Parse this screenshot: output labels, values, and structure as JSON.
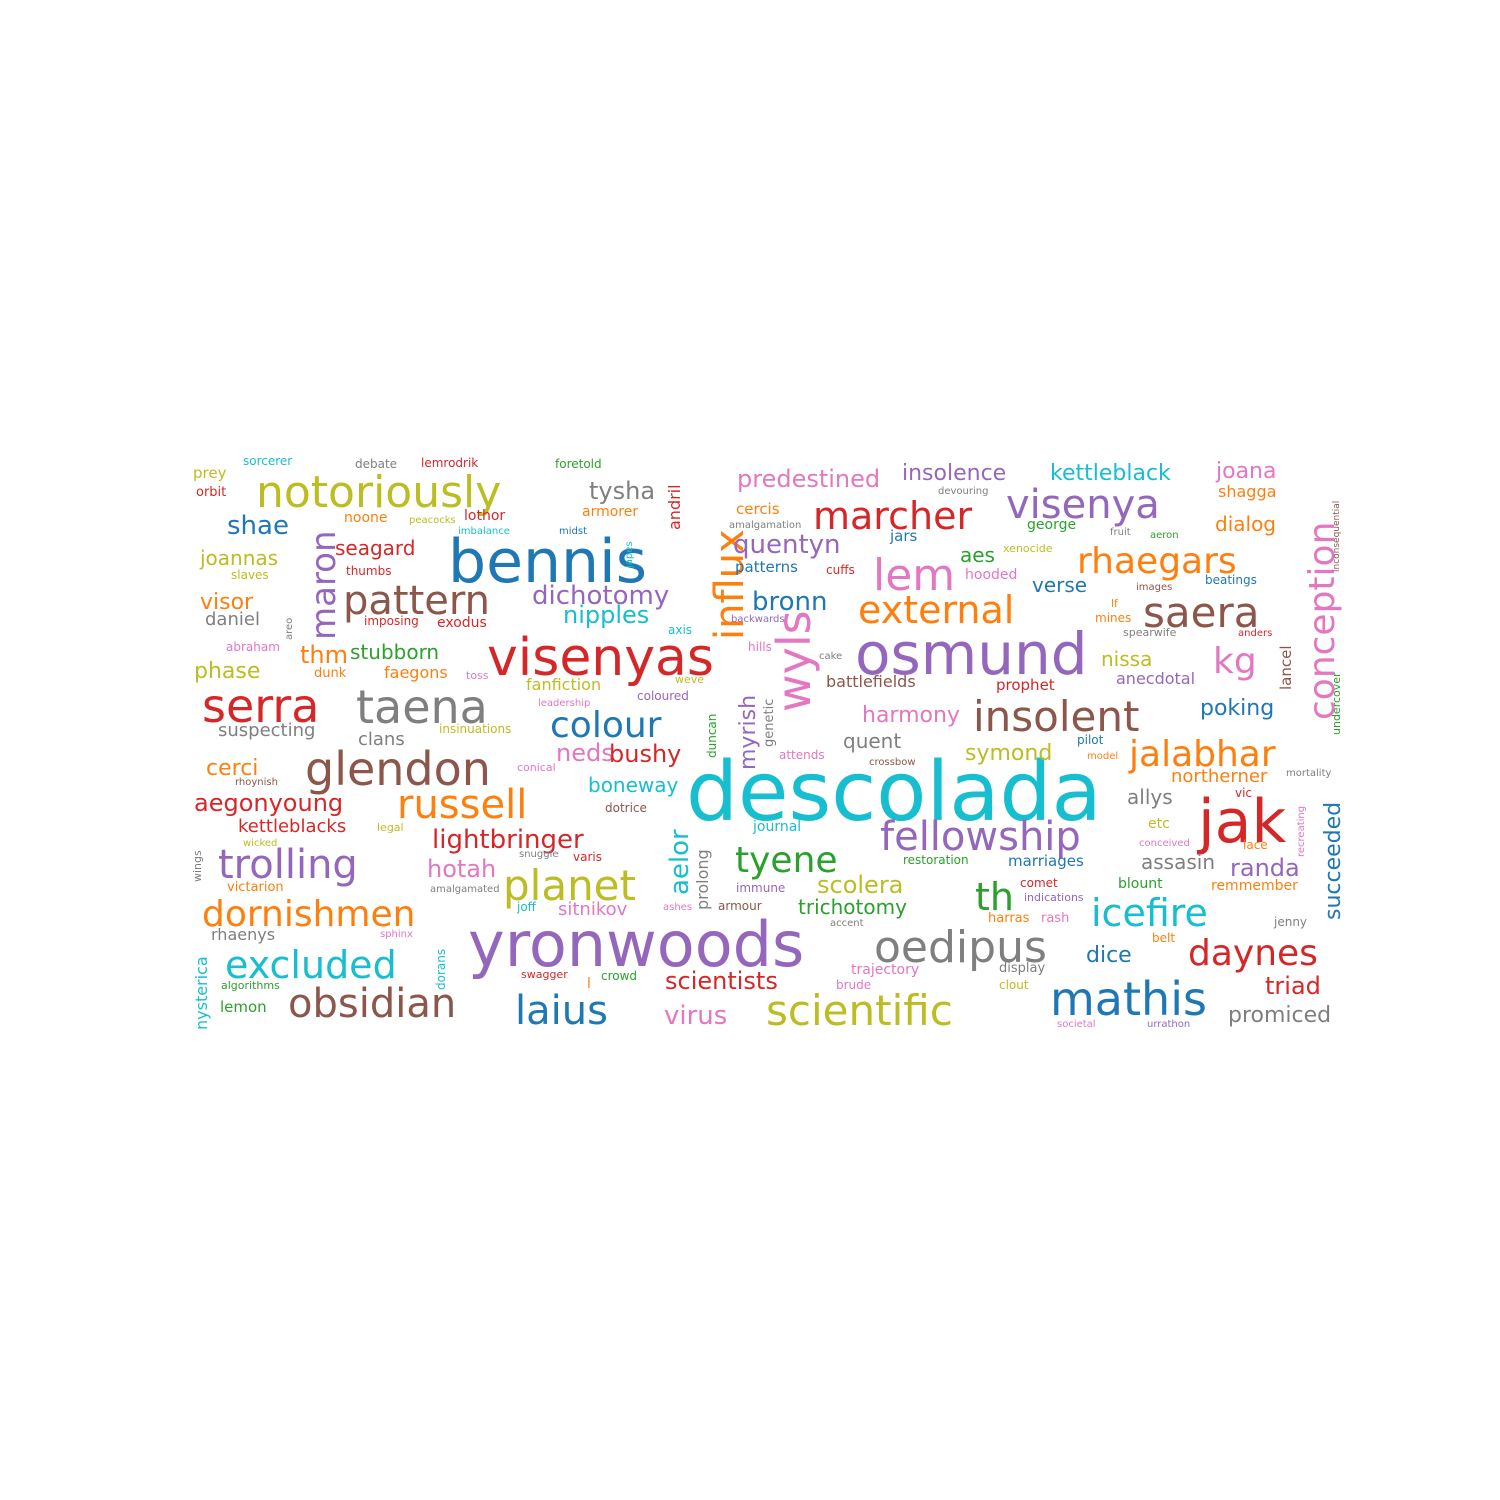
{
  "palette": {
    "blue": "#1f77b4",
    "orange": "#ff7f0e",
    "green": "#2ca02c",
    "red": "#d62728",
    "purple": "#9467bd",
    "brown": "#8c564b",
    "pink": "#e377c2",
    "gray": "#7f7f7f",
    "olive": "#bcbd22",
    "cyan": "#17becf"
  },
  "words": [
    {
      "text": "descolada",
      "weight": 100,
      "color": "cyan"
    },
    {
      "text": "yronwoods",
      "weight": 80,
      "color": "purple"
    },
    {
      "text": "bennis",
      "weight": 78,
      "color": "blue"
    },
    {
      "text": "osmund",
      "weight": 77,
      "color": "purple"
    },
    {
      "text": "visenyas",
      "weight": 73,
      "color": "red"
    },
    {
      "text": "jak",
      "weight": 70,
      "color": "red"
    },
    {
      "text": "notoriously",
      "weight": 60,
      "color": "olive"
    },
    {
      "text": "taena",
      "weight": 59,
      "color": "gray"
    },
    {
      "text": "glendon",
      "weight": 58,
      "color": "brown"
    },
    {
      "text": "serra",
      "weight": 58,
      "color": "red"
    },
    {
      "text": "wyls",
      "weight": 57,
      "color": "pink"
    },
    {
      "text": "oedipus",
      "weight": 56,
      "color": "gray"
    },
    {
      "text": "lem",
      "weight": 55,
      "color": "pink"
    },
    {
      "text": "mathis",
      "weight": 55,
      "color": "blue"
    },
    {
      "text": "fellowship",
      "weight": 54,
      "color": "purple"
    },
    {
      "text": "insolent",
      "weight": 53,
      "color": "brown"
    },
    {
      "text": "planet",
      "weight": 53,
      "color": "olive"
    },
    {
      "text": "saera",
      "weight": 53,
      "color": "brown"
    },
    {
      "text": "scientific",
      "weight": 52,
      "color": "olive"
    },
    {
      "text": "obsidian",
      "weight": 52,
      "color": "brown"
    },
    {
      "text": "visenya",
      "weight": 51,
      "color": "purple"
    },
    {
      "text": "influx",
      "weight": 51,
      "color": "orange"
    },
    {
      "text": "trolling",
      "weight": 51,
      "color": "purple"
    },
    {
      "text": "russell",
      "weight": 50,
      "color": "orange"
    },
    {
      "text": "pattern",
      "weight": 50,
      "color": "brown"
    },
    {
      "text": "external",
      "weight": 50,
      "color": "orange"
    },
    {
      "text": "icefire",
      "weight": 49,
      "color": "cyan"
    },
    {
      "text": "conception",
      "weight": 49,
      "color": "pink"
    },
    {
      "text": "excluded",
      "weight": 49,
      "color": "cyan"
    },
    {
      "text": "marcher",
      "weight": 49,
      "color": "red"
    },
    {
      "text": "laius",
      "weight": 48,
      "color": "blue"
    },
    {
      "text": "rhaegars",
      "weight": 48,
      "color": "orange"
    },
    {
      "text": "dornishmen",
      "weight": 48,
      "color": "orange"
    },
    {
      "text": "colour",
      "weight": 47,
      "color": "blue"
    },
    {
      "text": "daynes",
      "weight": 46,
      "color": "red"
    },
    {
      "text": "jalabhar",
      "weight": 46,
      "color": "orange"
    },
    {
      "text": "maron",
      "weight": 45,
      "color": "purple"
    },
    {
      "text": "kg",
      "weight": 44,
      "color": "pink"
    },
    {
      "text": "th",
      "weight": 44,
      "color": "green"
    },
    {
      "text": "tyene",
      "weight": 44,
      "color": "green"
    },
    {
      "text": "aelor",
      "weight": 38,
      "color": "cyan"
    },
    {
      "text": "lightbringer",
      "weight": 36,
      "color": "red"
    },
    {
      "text": "dichotomy",
      "weight": 36,
      "color": "purple"
    },
    {
      "text": "scolera",
      "weight": 35,
      "color": "olive"
    },
    {
      "text": "shae",
      "weight": 34,
      "color": "blue"
    },
    {
      "text": "quentyn",
      "weight": 34,
      "color": "purple"
    },
    {
      "text": "predestined",
      "weight": 34,
      "color": "pink"
    },
    {
      "text": "scientists",
      "weight": 33,
      "color": "red"
    },
    {
      "text": "virus",
      "weight": 33,
      "color": "pink"
    },
    {
      "text": "bronn",
      "weight": 33,
      "color": "blue"
    },
    {
      "text": "aegonyoung",
      "weight": 33,
      "color": "red"
    },
    {
      "text": "succeeded",
      "weight": 33,
      "color": "blue"
    },
    {
      "text": "myrish",
      "weight": 32,
      "color": "purple"
    },
    {
      "text": "tysha",
      "weight": 32,
      "color": "gray"
    },
    {
      "text": "nipples",
      "weight": 32,
      "color": "cyan"
    },
    {
      "text": "hotah",
      "weight": 32,
      "color": "pink"
    },
    {
      "text": "neds",
      "weight": 32,
      "color": "pink"
    },
    {
      "text": "bushy",
      "weight": 32,
      "color": "red"
    },
    {
      "text": "randa",
      "weight": 32,
      "color": "purple"
    },
    {
      "text": "triad",
      "weight": 32,
      "color": "red"
    },
    {
      "text": "promiced",
      "weight": 32,
      "color": "gray"
    },
    {
      "text": "joana",
      "weight": 31,
      "color": "pink"
    },
    {
      "text": "dice",
      "weight": 31,
      "color": "blue"
    },
    {
      "text": "visor",
      "weight": 31,
      "color": "orange"
    },
    {
      "text": "cerci",
      "weight": 31,
      "color": "orange"
    },
    {
      "text": "kettleblack",
      "weight": 31,
      "color": "cyan"
    },
    {
      "text": "insolence",
      "weight": 31,
      "color": "purple"
    },
    {
      "text": "seagard",
      "weight": 30,
      "color": "red"
    },
    {
      "text": "joannas",
      "weight": 30,
      "color": "olive"
    },
    {
      "text": "stubborn",
      "weight": 30,
      "color": "green"
    },
    {
      "text": "thm",
      "weight": 30,
      "color": "orange"
    },
    {
      "text": "phase",
      "weight": 30,
      "color": "olive"
    },
    {
      "text": "harmony",
      "weight": 30,
      "color": "pink"
    },
    {
      "text": "nissa",
      "weight": 30,
      "color": "olive"
    },
    {
      "text": "poking",
      "weight": 30,
      "color": "blue"
    },
    {
      "text": "symond",
      "weight": 30,
      "color": "olive"
    },
    {
      "text": "quent",
      "weight": 30,
      "color": "gray"
    },
    {
      "text": "trichotomy",
      "weight": 30,
      "color": "green"
    },
    {
      "text": "allys",
      "weight": 30,
      "color": "gray"
    },
    {
      "text": "aes",
      "weight": 30,
      "color": "green"
    },
    {
      "text": "verse",
      "weight": 30,
      "color": "blue"
    },
    {
      "text": "assasin",
      "weight": 29,
      "color": "gray"
    },
    {
      "text": "dialog",
      "weight": 29,
      "color": "orange"
    },
    {
      "text": "boneway",
      "weight": 29,
      "color": "cyan"
    },
    {
      "text": "sitnikov",
      "weight": 28,
      "color": "pink"
    },
    {
      "text": "daniel",
      "weight": 28,
      "color": "gray"
    },
    {
      "text": "suspecting",
      "weight": 28,
      "color": "gray"
    },
    {
      "text": "clans",
      "weight": 28,
      "color": "gray"
    },
    {
      "text": "northerner",
      "weight": 28,
      "color": "orange"
    },
    {
      "text": "rhaenys",
      "weight": 27,
      "color": "gray"
    },
    {
      "text": "prolong",
      "weight": 27,
      "color": "gray"
    },
    {
      "text": "andril",
      "weight": 26,
      "color": "red"
    },
    {
      "text": "kettleblacks",
      "weight": 26,
      "color": "red"
    },
    {
      "text": "fanfiction",
      "weight": 26,
      "color": "olive"
    },
    {
      "text": "battlefields",
      "weight": 26,
      "color": "brown"
    },
    {
      "text": "nysterica",
      "weight": 26,
      "color": "cyan"
    },
    {
      "text": "anecdotal",
      "weight": 26,
      "color": "purple"
    },
    {
      "text": "faegons",
      "weight": 26,
      "color": "orange"
    },
    {
      "text": "shagga",
      "weight": 26,
      "color": "orange"
    },
    {
      "text": "patterns",
      "weight": 25,
      "color": "blue"
    },
    {
      "text": "cercis",
      "weight": 25,
      "color": "orange"
    },
    {
      "text": "lancel",
      "weight": 25,
      "color": "brown"
    },
    {
      "text": "jars",
      "weight": 25,
      "color": "blue"
    },
    {
      "text": "marriages",
      "weight": 25,
      "color": "blue"
    },
    {
      "text": "prophet",
      "weight": 25,
      "color": "red"
    },
    {
      "text": "blount",
      "weight": 25,
      "color": "green"
    },
    {
      "text": "george",
      "weight": 25,
      "color": "green"
    },
    {
      "text": "armorer",
      "weight": 25,
      "color": "orange"
    },
    {
      "text": "hooded",
      "weight": 25,
      "color": "pink"
    },
    {
      "text": "exodus",
      "weight": 25,
      "color": "red"
    },
    {
      "text": "trajectory",
      "weight": 25,
      "color": "pink"
    },
    {
      "text": "lothor",
      "weight": 25,
      "color": "red"
    },
    {
      "text": "noone",
      "weight": 25,
      "color": "orange"
    },
    {
      "text": "prey",
      "weight": 25,
      "color": "olive"
    },
    {
      "text": "etc",
      "weight": 24,
      "color": "olive"
    },
    {
      "text": "genetic",
      "weight": 24,
      "color": "gray"
    },
    {
      "text": "duncan",
      "weight": 24,
      "color": "green"
    },
    {
      "text": "remmember",
      "weight": 24,
      "color": "orange"
    },
    {
      "text": "beatings",
      "weight": 24,
      "color": "blue"
    },
    {
      "text": "undercover",
      "weight": 23,
      "color": "green"
    },
    {
      "text": "journal",
      "weight": 23,
      "color": "cyan"
    },
    {
      "text": "crowd",
      "weight": 23,
      "color": "green"
    },
    {
      "text": "lemon",
      "weight": 23,
      "color": "green"
    },
    {
      "text": "restoration",
      "weight": 23,
      "color": "green"
    },
    {
      "text": "display",
      "weight": 23,
      "color": "gray"
    },
    {
      "text": "pilot",
      "weight": 23,
      "color": "blue"
    },
    {
      "text": "orbit",
      "weight": 23,
      "color": "red"
    },
    {
      "text": "sorcerer",
      "weight": 22,
      "color": "cyan"
    },
    {
      "text": "debate",
      "weight": 22,
      "color": "gray"
    },
    {
      "text": "lemrodrik",
      "weight": 22,
      "color": "red"
    },
    {
      "text": "foretold",
      "weight": 22,
      "color": "green"
    },
    {
      "text": "vic",
      "weight": 22,
      "color": "red"
    },
    {
      "text": "lace",
      "weight": 22,
      "color": "orange"
    },
    {
      "text": "harras",
      "weight": 22,
      "color": "orange"
    },
    {
      "text": "rash",
      "weight": 22,
      "color": "pink"
    },
    {
      "text": "comet",
      "weight": 22,
      "color": "red"
    },
    {
      "text": "cuffs",
      "weight": 22,
      "color": "red"
    },
    {
      "text": "dorans",
      "weight": 22,
      "color": "cyan"
    },
    {
      "text": "mines",
      "weight": 22,
      "color": "orange"
    },
    {
      "text": "varis",
      "weight": 22,
      "color": "red"
    },
    {
      "text": "victarion",
      "weight": 22,
      "color": "orange"
    },
    {
      "text": "swagger",
      "weight": 21,
      "color": "red"
    },
    {
      "text": "thumbs",
      "weight": 21,
      "color": "red"
    },
    {
      "text": "axis",
      "weight": 21,
      "color": "cyan"
    },
    {
      "text": "hills",
      "weight": 21,
      "color": "pink"
    },
    {
      "text": "armour",
      "weight": 21,
      "color": "brown"
    },
    {
      "text": "dotrice",
      "weight": 21,
      "color": "brown"
    },
    {
      "text": "immune",
      "weight": 21,
      "color": "purple"
    },
    {
      "text": "belt",
      "weight": 21,
      "color": "orange"
    },
    {
      "text": "jenny",
      "weight": 21,
      "color": "gray"
    },
    {
      "text": "brude",
      "weight": 21,
      "color": "pink"
    },
    {
      "text": "toss",
      "weight": 20,
      "color": "pink"
    },
    {
      "text": "dunk",
      "weight": 20,
      "color": "orange"
    },
    {
      "text": "wings",
      "weight": 20,
      "color": "gray"
    },
    {
      "text": "weve",
      "weight": 20,
      "color": "olive"
    },
    {
      "text": "slaves",
      "weight": 20,
      "color": "olive"
    },
    {
      "text": "imposing",
      "weight": 20,
      "color": "red"
    },
    {
      "text": "abraham",
      "weight": 20,
      "color": "pink"
    },
    {
      "text": "attends",
      "weight": 20,
      "color": "pink"
    },
    {
      "text": "joff",
      "weight": 20,
      "color": "cyan"
    },
    {
      "text": "insinuations",
      "weight": 20,
      "color": "olive"
    },
    {
      "text": "coloured",
      "weight": 20,
      "color": "purple"
    },
    {
      "text": "clout",
      "weight": 20,
      "color": "olive"
    },
    {
      "text": "algorithms",
      "weight": 20,
      "color": "green"
    },
    {
      "text": "areo",
      "weight": 19,
      "color": "gray"
    },
    {
      "text": "legal",
      "weight": 19,
      "color": "olive"
    },
    {
      "text": "conical",
      "weight": 19,
      "color": "pink"
    },
    {
      "text": "leadership",
      "weight": 19,
      "color": "pink"
    },
    {
      "text": "xenocide",
      "weight": 19,
      "color": "olive"
    },
    {
      "text": "lf",
      "weight": 19,
      "color": "orange"
    },
    {
      "text": "anders",
      "weight": 19,
      "color": "red"
    },
    {
      "text": "backwards",
      "weight": 19,
      "color": "purple"
    },
    {
      "text": "midst",
      "weight": 19,
      "color": "blue"
    },
    {
      "text": "imbalance",
      "weight": 19,
      "color": "cyan"
    },
    {
      "text": "peacocks",
      "weight": 19,
      "color": "olive"
    },
    {
      "text": "japes",
      "weight": 19,
      "color": "cyan"
    },
    {
      "text": "model",
      "weight": 19,
      "color": "orange"
    },
    {
      "text": "spearwife",
      "weight": 19,
      "color": "gray"
    },
    {
      "text": "indications",
      "weight": 19,
      "color": "purple"
    },
    {
      "text": "sphinx",
      "weight": 19,
      "color": "pink"
    },
    {
      "text": "societal",
      "weight": 19,
      "color": "pink"
    },
    {
      "text": "urrathon",
      "weight": 19,
      "color": "purple"
    },
    {
      "text": "devouring",
      "weight": 18,
      "color": "gray"
    },
    {
      "text": "amalgamation",
      "weight": 18,
      "color": "gray"
    },
    {
      "text": "inconsequential",
      "weight": 18,
      "color": "brown"
    },
    {
      "text": "fruit",
      "weight": 18,
      "color": "gray"
    },
    {
      "text": "aeron",
      "weight": 18,
      "color": "green"
    },
    {
      "text": "images",
      "weight": 18,
      "color": "brown"
    },
    {
      "text": "cake",
      "weight": 18,
      "color": "gray"
    },
    {
      "text": "rhoynish",
      "weight": 18,
      "color": "brown"
    },
    {
      "text": "mortality",
      "weight": 18,
      "color": "gray"
    },
    {
      "text": "recreating",
      "weight": 18,
      "color": "pink"
    },
    {
      "text": "conceived",
      "weight": 18,
      "color": "pink"
    },
    {
      "text": "crossbow",
      "weight": 18,
      "color": "brown"
    },
    {
      "text": "wicked",
      "weight": 18,
      "color": "olive"
    },
    {
      "text": "snuggle",
      "weight": 18,
      "color": "gray"
    },
    {
      "text": "amalgamated",
      "weight": 18,
      "color": "gray"
    },
    {
      "text": "ashes",
      "weight": 18,
      "color": "pink"
    },
    {
      "text": "accent",
      "weight": 18,
      "color": "gray"
    },
    {
      "text": "l",
      "weight": 18,
      "color": "orange"
    }
  ]
}
